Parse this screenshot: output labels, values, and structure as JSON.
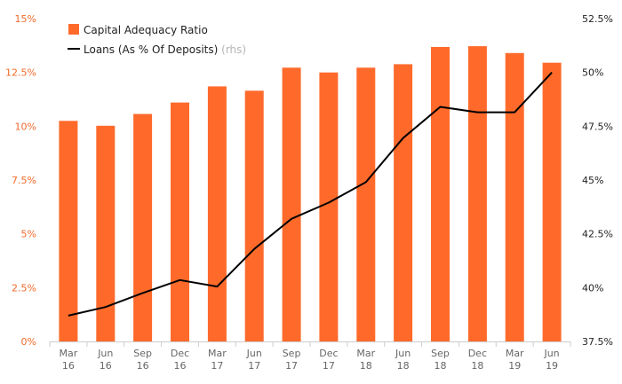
{
  "chart_data": {
    "type": "bar",
    "categories": [
      [
        "Mar",
        "16"
      ],
      [
        "Jun",
        "16"
      ],
      [
        "Sep",
        "16"
      ],
      [
        "Dec",
        "16"
      ],
      [
        "Mar",
        "17"
      ],
      [
        "Jun",
        "17"
      ],
      [
        "Sep",
        "17"
      ],
      [
        "Dec",
        "17"
      ],
      [
        "Mar",
        "18"
      ],
      [
        "Jun",
        "18"
      ],
      [
        "Sep",
        "18"
      ],
      [
        "Dec",
        "18"
      ],
      [
        "Mar",
        "19"
      ],
      [
        "Jun",
        "19"
      ]
    ],
    "series": [
      {
        "name": "Capital Adequacy Ratio",
        "type": "bar",
        "axis": "left",
        "color": "#ff6a2b",
        "values": [
          10.25,
          10.02,
          10.57,
          11.1,
          11.85,
          11.65,
          12.72,
          12.5,
          12.72,
          12.88,
          13.68,
          13.72,
          13.4,
          12.95
        ]
      },
      {
        "name": "Loans (As % Of Deposits)",
        "note": "(rhs)",
        "type": "line",
        "axis": "right",
        "color": "#000000",
        "values": [
          38.7,
          39.1,
          39.75,
          40.35,
          40.05,
          41.8,
          43.2,
          43.95,
          44.9,
          46.95,
          48.4,
          48.15,
          48.15,
          50.0
        ]
      }
    ],
    "left_axis": {
      "min": 0,
      "max": 15,
      "ticks": [
        0,
        2.5,
        5,
        7.5,
        10,
        12.5,
        15
      ],
      "tick_labels": [
        "0%",
        "2.5%",
        "5%",
        "7.5%",
        "10%",
        "12.5%",
        "15%"
      ],
      "color": "#f26a2a"
    },
    "right_axis": {
      "min": 37.5,
      "max": 52.5,
      "ticks": [
        37.5,
        40,
        42.5,
        45,
        47.5,
        50,
        52.5
      ],
      "tick_labels": [
        "37.5%",
        "40%",
        "42.5%",
        "45%",
        "47.5%",
        "50%",
        "52.5%"
      ],
      "color": "#222222"
    },
    "grid": false,
    "legend_position": "top-left"
  }
}
